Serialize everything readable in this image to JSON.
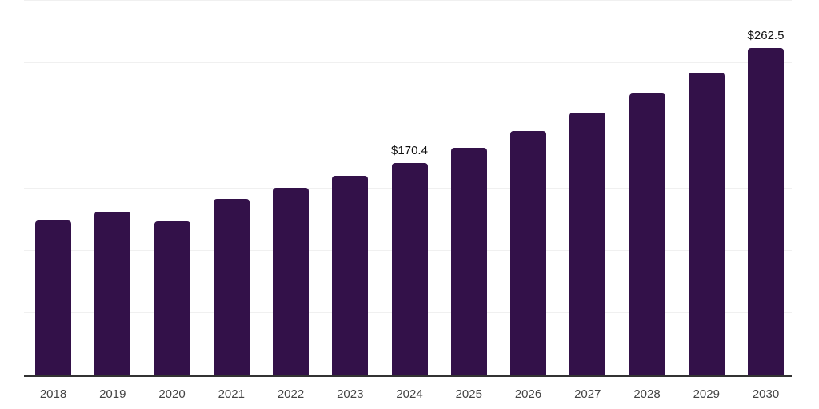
{
  "chart_data": {
    "type": "bar",
    "title": "",
    "xlabel": "",
    "ylabel": "",
    "categories": [
      "2018",
      "2019",
      "2020",
      "2021",
      "2022",
      "2023",
      "2024",
      "2025",
      "2026",
      "2027",
      "2028",
      "2029",
      "2030"
    ],
    "values": [
      124.2,
      130.9,
      123.5,
      141.6,
      150.4,
      159.7,
      170.4,
      182.1,
      195.9,
      210.2,
      225.5,
      242.7,
      262.5
    ],
    "data_labels": {
      "2024": "$170.4",
      "2030": "$262.5"
    },
    "ylim": [
      0,
      300
    ],
    "gridline_interval": 50,
    "grid": true,
    "legend": false,
    "y_tick_labels_visible": false,
    "colors": {
      "bar": "#331149",
      "axis_line": "#333333",
      "gridline": "#f0f0f0",
      "x_label": "#444444",
      "data_label": "#111111",
      "background": "#ffffff"
    }
  }
}
